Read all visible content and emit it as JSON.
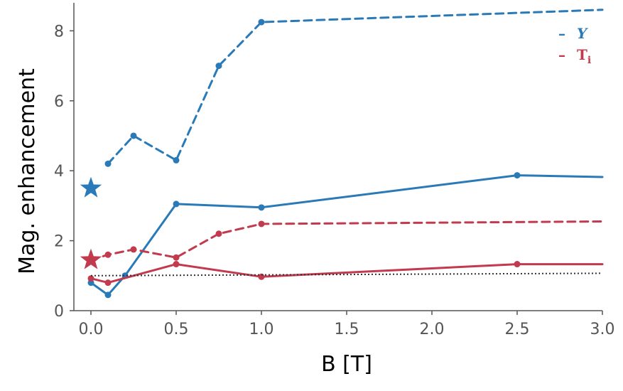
{
  "chart_data": {
    "type": "line",
    "xlabel": "B [T]",
    "ylabel": "Mag. enhancement",
    "xlim": [
      -0.1,
      3.0
    ],
    "ylim": [
      0,
      8.8
    ],
    "xticks": [
      "0.0",
      "0.5",
      "1.0",
      "1.5",
      "2.0",
      "2.5",
      "3.0"
    ],
    "xtick_values": [
      0.0,
      0.5,
      1.0,
      1.5,
      2.0,
      2.5,
      3.0
    ],
    "yticks": [
      "0",
      "2",
      "4",
      "6",
      "8"
    ],
    "ytick_values": [
      0,
      2,
      4,
      6,
      8
    ],
    "grid": false,
    "legend_placement": "top-right",
    "legend": [
      {
        "marker": "–",
        "label": "Y",
        "color": "#2a7ab8",
        "italic": true
      },
      {
        "marker": "–",
        "label": "T",
        "subscript": "i",
        "color": "#c23a4e",
        "italic": false
      }
    ],
    "series": [
      {
        "color": "#2a7ab8",
        "dashed": true,
        "x": [
          0.1,
          0.25,
          0.5,
          0.75,
          1.0,
          3.0
        ],
        "y": [
          4.2,
          5.0,
          4.3,
          7.0,
          8.25,
          8.6
        ],
        "markers": [
          true,
          true,
          true,
          true,
          true,
          false
        ]
      },
      {
        "color": "#2a7ab8",
        "dashed": false,
        "x": [
          0.0,
          0.1,
          0.2,
          0.5,
          1.0,
          2.5,
          3.0
        ],
        "y": [
          0.8,
          0.45,
          1.0,
          3.05,
          2.95,
          3.87,
          3.82
        ],
        "markers": [
          true,
          true,
          true,
          true,
          true,
          true,
          false
        ]
      },
      {
        "color": "#c23a4e",
        "dashed": true,
        "x": [
          0.0,
          0.1,
          0.25,
          0.5,
          0.75,
          1.0,
          3.0
        ],
        "y": [
          1.45,
          1.6,
          1.75,
          1.52,
          2.2,
          2.48,
          2.55
        ],
        "markers": [
          false,
          true,
          true,
          true,
          true,
          true,
          false
        ]
      },
      {
        "color": "#c23a4e",
        "dashed": false,
        "x": [
          0.0,
          0.1,
          0.5,
          1.0,
          2.5,
          3.0
        ],
        "y": [
          0.92,
          0.8,
          1.33,
          0.97,
          1.33,
          1.33
        ],
        "markers": [
          true,
          true,
          true,
          true,
          true,
          false
        ]
      },
      {
        "color": "#333333",
        "dotted": true,
        "x": [
          0.0,
          3.0
        ],
        "y": [
          1.0,
          1.07
        ],
        "markers": [
          false,
          false
        ]
      }
    ],
    "stars": [
      {
        "x": 0.0,
        "y": 3.5,
        "color": "#2a7ab8"
      },
      {
        "x": 0.0,
        "y": 1.45,
        "color": "#c23a4e"
      }
    ]
  }
}
